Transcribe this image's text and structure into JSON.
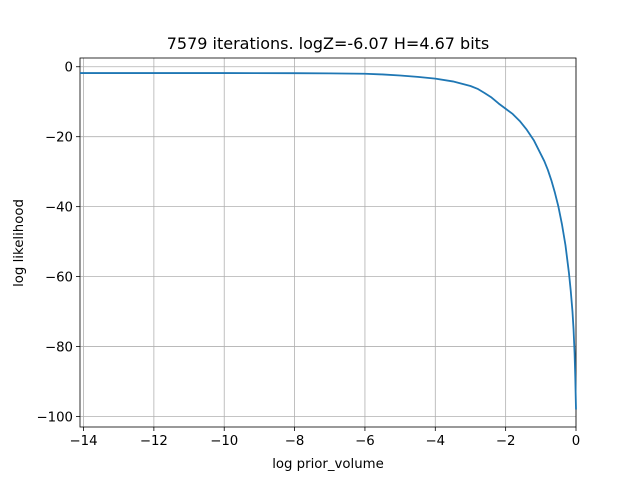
{
  "chart_data": {
    "type": "line",
    "title": "7579 iterations. logZ=-6.07 H=4.67 bits",
    "xlabel": "log prior_volume",
    "ylabel": "log likelihood",
    "xlim": [
      -14.1,
      0.0
    ],
    "ylim": [
      -103.0,
      2.5
    ],
    "xticks": [
      -14,
      -12,
      -10,
      -8,
      -6,
      -4,
      -2,
      0
    ],
    "xtick_labels": [
      "−14",
      "−12",
      "−10",
      "−8",
      "−6",
      "−4",
      "−2",
      "0"
    ],
    "yticks": [
      0,
      -20,
      -40,
      -60,
      -80,
      -100
    ],
    "ytick_labels": [
      "0",
      "−20",
      "−40",
      "−60",
      "−80",
      "−100"
    ],
    "grid": true,
    "series": [
      {
        "color": "#1f77b4",
        "x": [
          -14.1,
          -12.0,
          -10.0,
          -8.0,
          -7.0,
          -6.0,
          -5.5,
          -5.0,
          -4.5,
          -4.0,
          -3.5,
          -3.0,
          -2.8,
          -2.6,
          -2.4,
          -2.2,
          -2.0,
          -1.8,
          -1.6,
          -1.4,
          -1.2,
          -1.0,
          -0.9,
          -0.8,
          -0.7,
          -0.6,
          -0.5,
          -0.45,
          -0.4,
          -0.35,
          -0.3,
          -0.25,
          -0.2,
          -0.15,
          -0.1,
          -0.07,
          -0.04,
          -0.02,
          0.0
        ],
        "y": [
          -1.8,
          -1.8,
          -1.8,
          -1.85,
          -1.9,
          -2.0,
          -2.2,
          -2.5,
          -2.9,
          -3.4,
          -4.2,
          -5.5,
          -6.3,
          -7.5,
          -8.8,
          -10.5,
          -12.0,
          -13.5,
          -15.5,
          -18.0,
          -21.0,
          -25.0,
          -27.0,
          -29.5,
          -32.5,
          -36.0,
          -40.0,
          -42.5,
          -45.0,
          -48.0,
          -51.0,
          -55.0,
          -59.0,
          -64.0,
          -70.0,
          -75.0,
          -82.0,
          -89.0,
          -98.0
        ]
      }
    ]
  }
}
